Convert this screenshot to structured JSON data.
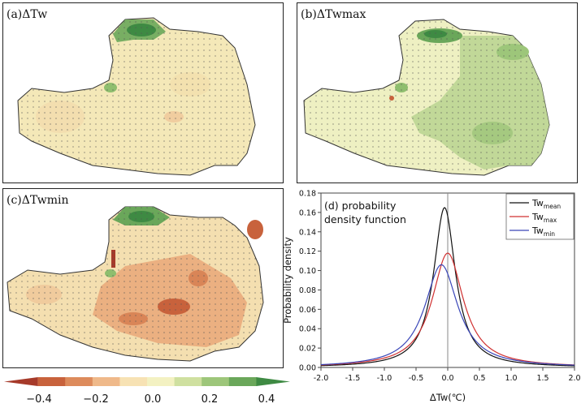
{
  "maps": [
    {
      "id": "a",
      "label": "(a)ΔTw"
    },
    {
      "id": "b",
      "label": "(b)ΔTwmax"
    },
    {
      "id": "c",
      "label": "(c)ΔTwmin"
    }
  ],
  "colorbar": {
    "colors": [
      "#a63a2a",
      "#c8623c",
      "#dd8b5c",
      "#efb98a",
      "#f7e2b4",
      "#f3f1c2",
      "#cfe0a0",
      "#9dc67a",
      "#6aa75a",
      "#3e8a43"
    ],
    "tick_labels": [
      "−0.4",
      "−0.2",
      "0.0",
      "0.2",
      "0.4"
    ]
  },
  "chart_data": {
    "type": "line",
    "title": "(d) probability density function",
    "title_lines": [
      "(d) probability",
      "density function"
    ],
    "xlabel": "ΔTw(℃)",
    "ylabel": "Probability density",
    "xlim": [
      -2.0,
      2.0
    ],
    "ylim": [
      0,
      0.18
    ],
    "xticks": [
      "-2.0",
      "-1.5",
      "-1.0",
      "-0.5",
      "0.0",
      "0.5",
      "1.0",
      "1.5",
      "2.0"
    ],
    "yticks": [
      "0.00",
      "0.02",
      "0.04",
      "0.06",
      "0.08",
      "0.10",
      "0.12",
      "0.14",
      "0.16",
      "0.18"
    ],
    "vline_x": 0,
    "legend_position": "top-right",
    "series": [
      {
        "name": "Tw",
        "sub": "mean",
        "color": "#111111",
        "center": -0.05,
        "peak": 0.165,
        "scale": 0.21
      },
      {
        "name": "Tw",
        "sub": "max",
        "color": "#d03030",
        "center": 0.0,
        "peak": 0.118,
        "scale": 0.3
      },
      {
        "name": "Tw",
        "sub": "min",
        "color": "#3a46b8",
        "center": -0.1,
        "peak": 0.106,
        "scale": 0.32
      }
    ]
  }
}
